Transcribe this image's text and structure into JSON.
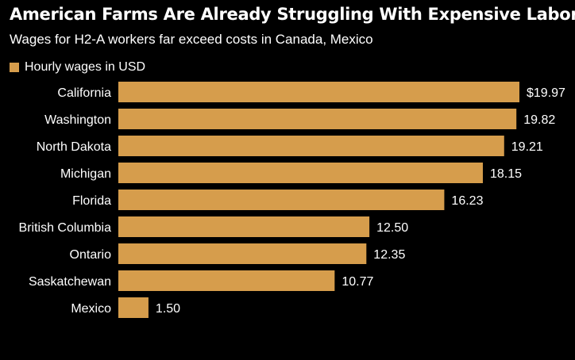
{
  "chart_data": {
    "type": "bar",
    "orientation": "horizontal",
    "title": "American Farms Are Already Struggling With Expensive Labor",
    "subtitle": "Wages for H2-A workers far exceed costs in Canada, Mexico",
    "categories": [
      "California",
      "Washington",
      "North Dakota",
      "Michigan",
      "Florida",
      "British Columbia",
      "Ontario",
      "Saskatchewan",
      "Mexico"
    ],
    "series": [
      {
        "name": "Hourly wages in USD",
        "values": [
          19.97,
          19.82,
          19.21,
          18.15,
          16.23,
          12.5,
          12.35,
          10.77,
          1.5
        ],
        "labels": [
          "$19.97",
          "19.82",
          "19.21",
          "18.15",
          "16.23",
          "12.50",
          "12.35",
          "10.77",
          "1.50"
        ]
      }
    ],
    "xlim": [
      0,
      19.97
    ],
    "grid": false,
    "legend_position": "top-left",
    "bar_color": "#D69D4C",
    "background_color": "#000000",
    "text_color": "#FFFFFF"
  }
}
